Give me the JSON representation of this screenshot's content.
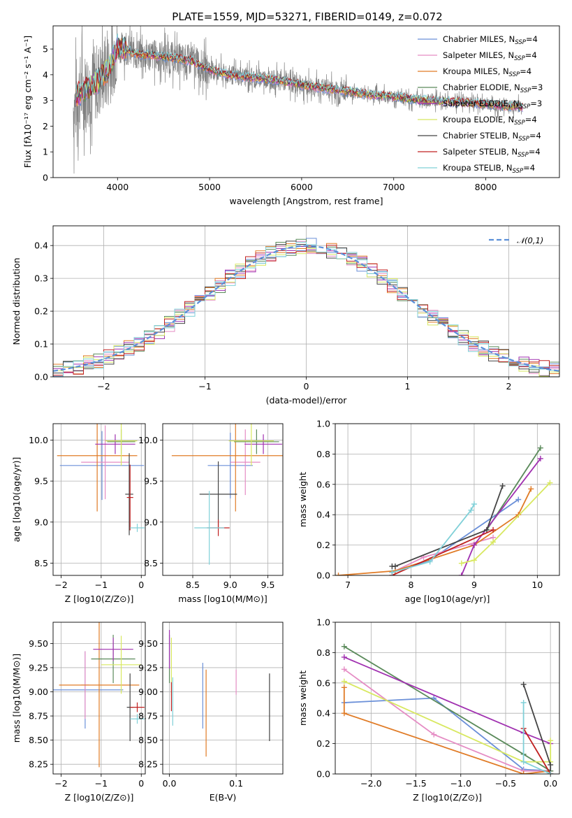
{
  "figure": {
    "title": "PLATE=1559, MJD=53271, FIBERID=0149, z=0.072"
  },
  "colors": {
    "Chabrier MILES": "#6a8fd8",
    "Salpeter MILES": "#e58cc4",
    "Kroupa MILES": "#e07b26",
    "Chabrier ELODIE": "#5a8a5a",
    "Salpeter ELODIE": "#a030b0",
    "Kroupa ELODIE": "#d8e860",
    "Chabrier STELIB": "#444444",
    "Salpeter STELIB": "#c02020",
    "Kroupa STELIB": "#80d0d8",
    "data": "#808080",
    "normal": "#5b8fd8"
  },
  "chart_data": [
    {
      "type": "line",
      "panel": "spectrum",
      "title": "PLATE=1559, MJD=53271, FIBERID=0149, z=0.072",
      "xlabel": "wavelength [Angstrom, rest frame]",
      "ylabel": "Flux [fλ10⁻¹⁷ erg cm⁻² s⁻¹ A⁻¹]",
      "xlim": [
        3300,
        8800
      ],
      "ylim": [
        0,
        5.9
      ],
      "xticks": [
        4000,
        5000,
        6000,
        7000,
        8000
      ],
      "yticks": [
        0,
        1,
        2,
        3,
        4,
        5
      ],
      "legend_position": "right",
      "legend": [
        "Chabrier MILES, N_SSP=4",
        "Salpeter MILES, N_SSP=4",
        "Kroupa MILES, N_SSP=4",
        "Chabrier ELODIE, N_SSP=3",
        "Salpeter ELODIE, N_SSP=3",
        "Kroupa ELODIE, N_SSP=4",
        "Chabrier STELIB, N_SSP=4",
        "Salpeter STELIB, N_SSP=4",
        "Kroupa STELIB, N_SSP=4"
      ],
      "model_continuum": {
        "x": [
          3550,
          3600,
          3700,
          3800,
          3900,
          4000,
          4100,
          4200,
          4400,
          4600,
          4800,
          5000,
          5200,
          5400,
          5600,
          5800,
          6000,
          6200,
          6400,
          6600,
          6800,
          7000,
          7200,
          7400,
          7600,
          7800,
          8000,
          8200,
          8400
        ],
        "y": [
          3.2,
          3.3,
          3.5,
          3.8,
          4.2,
          5.1,
          5.0,
          4.8,
          4.75,
          4.65,
          4.55,
          4.2,
          4.0,
          3.9,
          3.85,
          3.75,
          3.6,
          3.5,
          3.4,
          3.3,
          3.2,
          3.15,
          3.05,
          3.0,
          2.95,
          2.92,
          2.85,
          2.8,
          2.75
        ]
      }
    },
    {
      "type": "line",
      "panel": "residual-distribution",
      "xlabel": "(data-model)/error",
      "ylabel": "Normed distribution",
      "xlim": [
        -2.5,
        2.5
      ],
      "ylim": [
        0,
        0.46
      ],
      "xticks": [
        -2,
        -1,
        0,
        1,
        2
      ],
      "yticks": [
        0.0,
        0.1,
        0.2,
        0.3,
        0.4
      ],
      "legend": [
        "𝒩(0,1)"
      ],
      "legend_position": "top-right",
      "bin_width": 0.1
    },
    {
      "type": "scatter",
      "panel": "age-vs-Z",
      "xlabel": "Z [log10(Z/Z⊙)]",
      "ylabel": "age [log10(age/yr)]",
      "xlim": [
        -2.2,
        0.1
      ],
      "ylim": [
        8.35,
        10.2
      ],
      "xticks": [
        -2,
        -1,
        0
      ],
      "yticks": [
        8.5,
        9.0,
        9.5,
        10.0
      ],
      "points": [
        {
          "model": "Chabrier MILES",
          "x": -0.98,
          "y": 9.69,
          "xerr": 1.05,
          "yerr": 0.42
        },
        {
          "model": "Salpeter MILES",
          "x": -0.9,
          "y": 9.73,
          "xerr": 0.6,
          "yerr": 0.45
        },
        {
          "model": "Kroupa MILES",
          "x": -1.1,
          "y": 9.81,
          "xerr": 1.0,
          "yerr": 0.68
        },
        {
          "model": "Chabrier ELODIE",
          "x": -0.5,
          "y": 9.98,
          "xerr": 0.35,
          "yerr": 0.15
        },
        {
          "model": "Salpeter ELODIE",
          "x": -0.65,
          "y": 9.95,
          "xerr": 0.5,
          "yerr": 0.12
        },
        {
          "model": "Kroupa ELODIE",
          "x": -0.5,
          "y": 9.99,
          "xerr": 0.4,
          "yerr": 0.3
        },
        {
          "model": "Chabrier STELIB",
          "x": -0.3,
          "y": 9.34,
          "xerr": 0.1,
          "yerr": 0.5
        },
        {
          "model": "Salpeter STELIB",
          "x": -0.28,
          "y": 9.3,
          "xerr": 0.08,
          "yerr": 0.4
        },
        {
          "model": "Kroupa STELIB",
          "x": -0.1,
          "y": 8.93,
          "xerr": 0.18,
          "yerr": 0.05
        }
      ]
    },
    {
      "type": "scatter",
      "panel": "age-vs-mass",
      "xlabel": "mass [log10(M/M⊙)]",
      "ylabel": "",
      "xlim": [
        8.1,
        9.7
      ],
      "ylim": [
        8.35,
        10.2
      ],
      "xticks": [
        8.5,
        9.0,
        9.5
      ],
      "yticks": [
        8.5,
        9.0,
        9.5,
        10.0
      ],
      "points": [
        {
          "model": "Chabrier MILES",
          "x": 9.0,
          "y": 9.69,
          "xerr": 0.3,
          "yerr": 0.4
        },
        {
          "model": "Salpeter MILES",
          "x": 9.2,
          "y": 9.73,
          "xerr": 0.2,
          "yerr": 0.4
        },
        {
          "model": "Kroupa MILES",
          "x": 9.07,
          "y": 9.81,
          "xerr": 0.85,
          "yerr": 0.68
        },
        {
          "model": "Chabrier ELODIE",
          "x": 9.35,
          "y": 9.98,
          "xerr": 0.3,
          "yerr": 0.15
        },
        {
          "model": "Salpeter ELODIE",
          "x": 9.44,
          "y": 9.95,
          "xerr": 0.25,
          "yerr": 0.12
        },
        {
          "model": "Kroupa ELODIE",
          "x": 9.28,
          "y": 9.99,
          "xerr": 0.3,
          "yerr": 0.3
        },
        {
          "model": "Chabrier STELIB",
          "x": 8.84,
          "y": 9.34,
          "xerr": 0.25,
          "yerr": 0.4
        },
        {
          "model": "Salpeter STELIB",
          "x": 8.84,
          "y": 8.93,
          "xerr": 0.15,
          "yerr": 0.1
        },
        {
          "model": "Kroupa STELIB",
          "x": 8.72,
          "y": 8.93,
          "xerr": 0.2,
          "yerr": 0.45
        }
      ]
    },
    {
      "type": "line",
      "panel": "mass-weight-vs-age",
      "xlabel": "age [log10(age/yr)]",
      "ylabel": "mass weight",
      "xlim": [
        6.8,
        10.35
      ],
      "ylim": [
        0,
        1.0
      ],
      "xticks": [
        7,
        8,
        9,
        10
      ],
      "yticks": [
        0.0,
        0.2,
        0.4,
        0.6,
        0.8,
        1.0
      ],
      "series": [
        {
          "name": "Chabrier MILES",
          "x": [
            7.7,
            8.3,
            9.7
          ],
          "y": [
            0.02,
            0.1,
            0.5
          ]
        },
        {
          "name": "Salpeter MILES",
          "x": [
            7.7,
            8.2,
            9.3
          ],
          "y": [
            0.02,
            0.12,
            0.25
          ]
        },
        {
          "name": "Kroupa MILES",
          "x": [
            6.85,
            7.75,
            9.0,
            9.7,
            9.9
          ],
          "y": [
            0.0,
            0.03,
            0.2,
            0.4,
            0.57
          ]
        },
        {
          "name": "Chabrier ELODIE",
          "x": [
            9.2,
            10.05
          ],
          "y": [
            0.3,
            0.84
          ]
        },
        {
          "name": "Salpeter ELODIE",
          "x": [
            8.8,
            9.0,
            10.05
          ],
          "y": [
            0.0,
            0.2,
            0.77
          ]
        },
        {
          "name": "Kroupa ELODIE",
          "x": [
            8.8,
            9.0,
            9.3,
            10.2
          ],
          "y": [
            0.08,
            0.1,
            0.22,
            0.61
          ]
        },
        {
          "name": "Chabrier STELIB",
          "x": [
            7.7,
            7.75,
            9.2,
            9.45
          ],
          "y": [
            0.06,
            0.06,
            0.3,
            0.59
          ]
        },
        {
          "name": "Salpeter STELIB",
          "x": [
            7.7,
            9.3
          ],
          "y": [
            0.0,
            0.3
          ]
        },
        {
          "name": "Kroupa STELIB",
          "x": [
            7.7,
            8.3,
            8.95,
            9.0
          ],
          "y": [
            0.02,
            0.09,
            0.43,
            0.47
          ]
        }
      ]
    },
    {
      "type": "scatter",
      "panel": "mass-vs-Z",
      "xlabel": "Z [log10(Z/Z⊙)]",
      "ylabel": "mass [log10(M/M⊙)]",
      "xlim": [
        -2.2,
        0.1
      ],
      "ylim": [
        8.15,
        9.72
      ],
      "xticks": [
        -2,
        -1,
        0
      ],
      "yticks": [
        8.25,
        8.5,
        8.75,
        9.0,
        9.25,
        9.5
      ],
      "points": [
        {
          "model": "Chabrier MILES",
          "x": -1.4,
          "y": 9.02,
          "xerr": 0.95,
          "yerr": 0.4
        },
        {
          "model": "Salpeter MILES",
          "x": -1.4,
          "y": 9.07,
          "xerr": 0.1,
          "yerr": 0.35
        },
        {
          "model": "Kroupa MILES",
          "x": -1.05,
          "y": 9.07,
          "xerr": 1.0,
          "yerr": 0.85
        },
        {
          "model": "Chabrier ELODIE",
          "x": -0.7,
          "y": 9.34,
          "xerr": 0.55,
          "yerr": 0.25
        },
        {
          "model": "Salpeter ELODIE",
          "x": -0.7,
          "y": 9.44,
          "xerr": 0.5,
          "yerr": 0.12
        },
        {
          "model": "Kroupa ELODIE",
          "x": -0.5,
          "y": 9.28,
          "xerr": 0.5,
          "yerr": 0.3
        },
        {
          "model": "Chabrier STELIB",
          "x": -0.28,
          "y": 8.84,
          "xerr": 0.08,
          "yerr": 0.35
        },
        {
          "model": "Salpeter STELIB",
          "x": -0.1,
          "y": 8.84,
          "xerr": 0.18,
          "yerr": 0.05
        },
        {
          "model": "Kroupa STELIB",
          "x": -0.1,
          "y": 8.72,
          "xerr": 0.18,
          "yerr": 0.05
        }
      ]
    },
    {
      "type": "scatter",
      "panel": "mass-vs-EBV",
      "xlabel": "E(B-V)",
      "ylabel": "",
      "xlim": [
        -0.01,
        0.17
      ],
      "ylim": [
        8.15,
        9.72
      ],
      "xticks": [
        0.0,
        0.1
      ],
      "yticks": [
        8.25,
        8.5,
        8.75,
        9.0,
        9.25,
        9.5
      ],
      "points": [
        {
          "model": "Chabrier MILES",
          "x": 0.05,
          "y": 8.96,
          "xerr": 0,
          "yerr": 0.34
        },
        {
          "model": "Salpeter MILES",
          "x": 0.1,
          "y": 9.1,
          "xerr": 0,
          "yerr": 0.13
        },
        {
          "model": "Kroupa MILES",
          "x": 0.055,
          "y": 8.78,
          "xerr": 0,
          "yerr": 0.45
        },
        {
          "model": "Chabrier ELODIE",
          "x": 0.0,
          "y": 9.34,
          "xerr": 0,
          "yerr": 0.25
        },
        {
          "model": "Salpeter ELODIE",
          "x": 0.0,
          "y": 9.44,
          "xerr": 0,
          "yerr": 0.2
        },
        {
          "model": "Kroupa ELODIE",
          "x": 0.003,
          "y": 9.26,
          "xerr": 0,
          "yerr": 0.3
        },
        {
          "model": "Chabrier STELIB",
          "x": 0.15,
          "y": 8.84,
          "xerr": 0,
          "yerr": 0.35
        },
        {
          "model": "Salpeter STELIB",
          "x": 0.003,
          "y": 8.95,
          "xerr": 0,
          "yerr": 0.15
        },
        {
          "model": "Kroupa STELIB",
          "x": 0.005,
          "y": 8.9,
          "xerr": 0,
          "yerr": 0.25
        }
      ]
    },
    {
      "type": "line",
      "panel": "mass-weight-vs-Z",
      "xlabel": "Z [log10(Z/Z⊙)]",
      "ylabel": "mass weight",
      "xlim": [
        -2.4,
        0.1
      ],
      "ylim": [
        0,
        1.0
      ],
      "xticks": [
        -2.0,
        -1.5,
        -1.0,
        -0.5,
        0.0
      ],
      "yticks": [
        0.0,
        0.2,
        0.4,
        0.6,
        0.8,
        1.0
      ],
      "series": [
        {
          "name": "Chabrier MILES",
          "x": [
            -2.3,
            -1.3,
            -0.3,
            0.0
          ],
          "y": [
            0.47,
            0.5,
            0.03,
            0.02
          ]
        },
        {
          "name": "Salpeter MILES",
          "x": [
            -2.3,
            -1.3,
            -0.3,
            0.0
          ],
          "y": [
            0.69,
            0.26,
            0.02,
            0.02
          ]
        },
        {
          "name": "Kroupa MILES",
          "x": [
            -2.3,
            -2.3,
            -0.3,
            0.0
          ],
          "y": [
            0.57,
            0.4,
            0.0,
            0.02
          ]
        },
        {
          "name": "Chabrier ELODIE",
          "x": [
            -2.3,
            -0.3,
            0.0
          ],
          "y": [
            0.84,
            0.13,
            0.02
          ]
        },
        {
          "name": "Salpeter ELODIE",
          "x": [
            -2.3,
            -0.3,
            0.0
          ],
          "y": [
            0.77,
            0.27,
            0.2
          ]
        },
        {
          "name": "Kroupa ELODIE",
          "x": [
            -2.3,
            -0.3,
            0.0,
            0.0
          ],
          "y": [
            0.61,
            0.08,
            0.08,
            0.22
          ]
        },
        {
          "name": "Chabrier STELIB",
          "x": [
            -0.3,
            0.0,
            0.0
          ],
          "y": [
            0.59,
            0.06,
            0.0
          ]
        },
        {
          "name": "Salpeter STELIB",
          "x": [
            -0.3,
            0.0
          ],
          "y": [
            0.3,
            0.0
          ]
        },
        {
          "name": "Kroupa STELIB",
          "x": [
            -0.3,
            -0.3,
            0.0
          ],
          "y": [
            0.47,
            0.08,
            0.0
          ]
        }
      ]
    }
  ]
}
